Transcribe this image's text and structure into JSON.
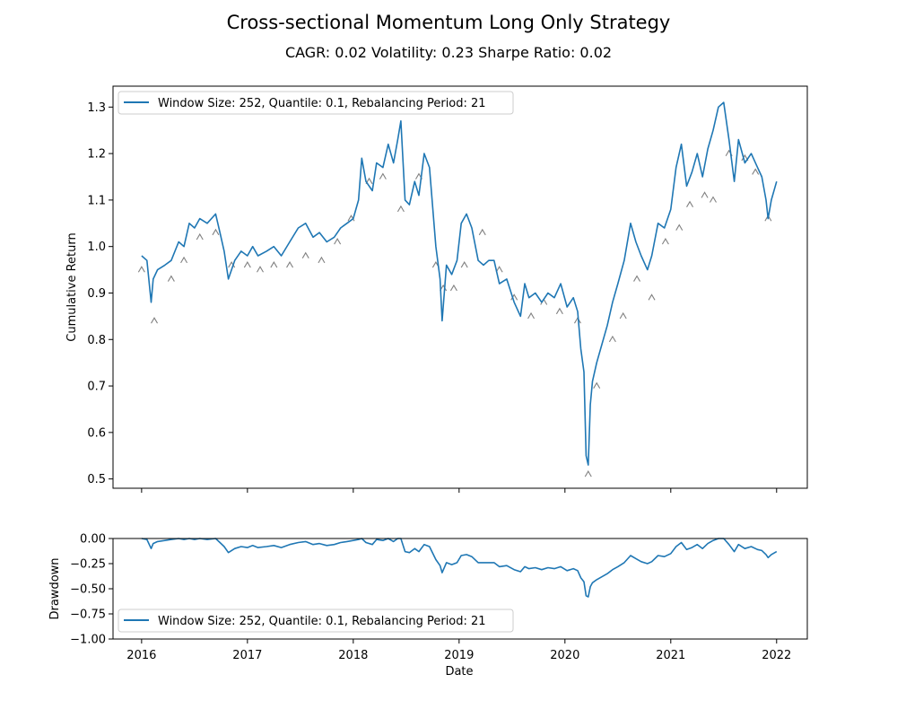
{
  "chart_data": {
    "type": "line",
    "title": "Cross-sectional Momentum Long Only Strategy",
    "subtitle": "CAGR: 0.02 Volatility: 0.23 Sharpe Ratio: 0.02",
    "line_color": "#1f77b4",
    "marker_color": "#808080",
    "panels": [
      {
        "name": "cumulative-return",
        "ylabel": "Cumulative Return",
        "ylim": [
          0.48,
          1.345
        ],
        "yticks": [
          0.5,
          0.6,
          0.7,
          0.8,
          0.9,
          1.0,
          1.1,
          1.2,
          1.3
        ],
        "ytick_labels": [
          "0.5",
          "0.6",
          "0.7",
          "0.8",
          "0.9",
          "1.0",
          "1.1",
          "1.2",
          "1.3"
        ],
        "legend": "Window Size: 252, Quantile: 0.1, Rebalancing Period: 21",
        "legend_loc": "upper left",
        "x": [
          2016.0,
          2016.05,
          2016.09,
          2016.11,
          2016.15,
          2016.22,
          2016.28,
          2016.35,
          2016.4,
          2016.45,
          2016.5,
          2016.55,
          2016.62,
          2016.7,
          2016.74,
          2016.78,
          2016.82,
          2016.88,
          2016.94,
          2017.0,
          2017.05,
          2017.1,
          2017.18,
          2017.25,
          2017.32,
          2017.4,
          2017.48,
          2017.55,
          2017.62,
          2017.68,
          2017.75,
          2017.82,
          2017.88,
          2017.94,
          2018.0,
          2018.05,
          2018.08,
          2018.12,
          2018.18,
          2018.22,
          2018.28,
          2018.33,
          2018.38,
          2018.42,
          2018.45,
          2018.49,
          2018.53,
          2018.58,
          2018.62,
          2018.67,
          2018.72,
          2018.78,
          2018.82,
          2018.84,
          2018.88,
          2018.93,
          2018.98,
          2019.02,
          2019.07,
          2019.12,
          2019.18,
          2019.23,
          2019.28,
          2019.33,
          2019.38,
          2019.45,
          2019.52,
          2019.58,
          2019.62,
          2019.66,
          2019.72,
          2019.78,
          2019.84,
          2019.9,
          2019.96,
          2020.02,
          2020.08,
          2020.12,
          2020.15,
          2020.18,
          2020.2,
          2020.22,
          2020.24,
          2020.26,
          2020.3,
          2020.35,
          2020.4,
          2020.45,
          2020.5,
          2020.56,
          2020.62,
          2020.67,
          2020.72,
          2020.78,
          2020.82,
          2020.88,
          2020.94,
          2021.0,
          2021.05,
          2021.1,
          2021.15,
          2021.2,
          2021.25,
          2021.3,
          2021.35,
          2021.4,
          2021.45,
          2021.5,
          2021.55,
          2021.6,
          2021.64,
          2021.7,
          2021.76,
          2021.82,
          2021.86,
          2021.9,
          2021.92,
          2021.95,
          2022.0
        ],
        "y": [
          0.98,
          0.97,
          0.88,
          0.93,
          0.95,
          0.96,
          0.97,
          1.01,
          1.0,
          1.05,
          1.04,
          1.06,
          1.05,
          1.07,
          1.03,
          0.99,
          0.93,
          0.97,
          0.99,
          0.98,
          1.0,
          0.98,
          0.99,
          1.0,
          0.98,
          1.01,
          1.04,
          1.05,
          1.02,
          1.03,
          1.01,
          1.02,
          1.04,
          1.05,
          1.06,
          1.1,
          1.19,
          1.14,
          1.12,
          1.18,
          1.17,
          1.22,
          1.18,
          1.23,
          1.27,
          1.1,
          1.09,
          1.14,
          1.11,
          1.2,
          1.17,
          1.0,
          0.93,
          0.84,
          0.96,
          0.94,
          0.97,
          1.05,
          1.07,
          1.04,
          0.97,
          0.96,
          0.97,
          0.97,
          0.92,
          0.93,
          0.88,
          0.85,
          0.92,
          0.89,
          0.9,
          0.88,
          0.9,
          0.89,
          0.92,
          0.87,
          0.89,
          0.86,
          0.78,
          0.73,
          0.55,
          0.53,
          0.66,
          0.71,
          0.75,
          0.79,
          0.83,
          0.88,
          0.92,
          0.97,
          1.05,
          1.01,
          0.98,
          0.95,
          0.98,
          1.05,
          1.04,
          1.08,
          1.17,
          1.22,
          1.13,
          1.16,
          1.2,
          1.15,
          1.21,
          1.25,
          1.3,
          1.31,
          1.23,
          1.14,
          1.23,
          1.18,
          1.2,
          1.17,
          1.15,
          1.1,
          1.06,
          1.1,
          1.14
        ]
      },
      {
        "name": "drawdown",
        "ylabel": "Drawdown",
        "xlabel": "Date",
        "ylim": [
          -1.0,
          0.0
        ],
        "yticks": [
          -1.0,
          -0.75,
          -0.5,
          -0.25,
          0.0
        ],
        "ytick_labels": [
          "−1.00",
          "−0.75",
          "−0.50",
          "−0.25",
          "0.00"
        ],
        "legend": "Window Size: 252, Quantile: 0.1, Rebalancing Period: 21",
        "legend_loc": "lower left",
        "x": [
          2016.0,
          2016.05,
          2016.09,
          2016.11,
          2016.15,
          2016.22,
          2016.28,
          2016.35,
          2016.4,
          2016.45,
          2016.5,
          2016.55,
          2016.62,
          2016.7,
          2016.74,
          2016.78,
          2016.82,
          2016.88,
          2016.94,
          2017.0,
          2017.05,
          2017.1,
          2017.18,
          2017.25,
          2017.32,
          2017.4,
          2017.48,
          2017.55,
          2017.62,
          2017.68,
          2017.75,
          2017.82,
          2017.88,
          2017.94,
          2018.0,
          2018.05,
          2018.08,
          2018.12,
          2018.18,
          2018.22,
          2018.28,
          2018.33,
          2018.38,
          2018.42,
          2018.45,
          2018.49,
          2018.53,
          2018.58,
          2018.62,
          2018.67,
          2018.72,
          2018.78,
          2018.82,
          2018.84,
          2018.88,
          2018.93,
          2018.98,
          2019.02,
          2019.07,
          2019.12,
          2019.18,
          2019.23,
          2019.28,
          2019.33,
          2019.38,
          2019.45,
          2019.52,
          2019.58,
          2019.62,
          2019.66,
          2019.72,
          2019.78,
          2019.84,
          2019.9,
          2019.96,
          2020.02,
          2020.08,
          2020.12,
          2020.15,
          2020.18,
          2020.2,
          2020.22,
          2020.24,
          2020.26,
          2020.3,
          2020.35,
          2020.4,
          2020.45,
          2020.5,
          2020.56,
          2020.62,
          2020.67,
          2020.72,
          2020.78,
          2020.82,
          2020.88,
          2020.94,
          2021.0,
          2021.05,
          2021.1,
          2021.15,
          2021.2,
          2021.25,
          2021.3,
          2021.35,
          2021.4,
          2021.45,
          2021.5,
          2021.55,
          2021.6,
          2021.64,
          2021.7,
          2021.76,
          2021.82,
          2021.86,
          2021.9,
          2021.92,
          2021.95,
          2022.0
        ],
        "y": [
          0.0,
          -0.01,
          -0.1,
          -0.05,
          -0.03,
          -0.02,
          -0.01,
          0.0,
          -0.01,
          0.0,
          -0.01,
          0.0,
          -0.01,
          0.0,
          -0.04,
          -0.08,
          -0.14,
          -0.1,
          -0.08,
          -0.09,
          -0.07,
          -0.09,
          -0.08,
          -0.07,
          -0.09,
          -0.06,
          -0.04,
          -0.03,
          -0.06,
          -0.05,
          -0.07,
          -0.06,
          -0.04,
          -0.03,
          -0.02,
          -0.01,
          0.0,
          -0.04,
          -0.06,
          -0.01,
          -0.02,
          0.0,
          -0.03,
          0.0,
          0.0,
          -0.13,
          -0.14,
          -0.1,
          -0.13,
          -0.06,
          -0.08,
          -0.21,
          -0.27,
          -0.34,
          -0.24,
          -0.26,
          -0.24,
          -0.17,
          -0.16,
          -0.18,
          -0.24,
          -0.24,
          -0.24,
          -0.24,
          -0.28,
          -0.27,
          -0.31,
          -0.33,
          -0.28,
          -0.3,
          -0.29,
          -0.31,
          -0.29,
          -0.3,
          -0.28,
          -0.32,
          -0.3,
          -0.32,
          -0.39,
          -0.43,
          -0.57,
          -0.58,
          -0.48,
          -0.44,
          -0.41,
          -0.38,
          -0.35,
          -0.31,
          -0.28,
          -0.24,
          -0.17,
          -0.2,
          -0.23,
          -0.25,
          -0.23,
          -0.17,
          -0.18,
          -0.15,
          -0.08,
          -0.04,
          -0.11,
          -0.09,
          -0.06,
          -0.1,
          -0.05,
          -0.02,
          0.0,
          0.0,
          -0.06,
          -0.13,
          -0.06,
          -0.1,
          -0.08,
          -0.11,
          -0.12,
          -0.16,
          -0.19,
          -0.16,
          -0.13
        ]
      }
    ],
    "xticks": [
      2016,
      2017,
      2018,
      2019,
      2020,
      2021,
      2022
    ],
    "xtick_labels": [
      "2016",
      "2017",
      "2018",
      "2019",
      "2020",
      "2021",
      "2022"
    ],
    "xlim": [
      2015.73,
      2022.29
    ],
    "markers": {
      "symbol": "^",
      "x": [
        2016.0,
        2016.12,
        2016.28,
        2016.4,
        2016.55,
        2016.7,
        2016.85,
        2017.0,
        2017.12,
        2017.25,
        2017.4,
        2017.55,
        2017.7,
        2017.85,
        2017.98,
        2018.15,
        2018.28,
        2018.45,
        2018.62,
        2018.78,
        2018.85,
        2018.95,
        2019.05,
        2019.22,
        2019.38,
        2019.52,
        2019.68,
        2019.8,
        2019.95,
        2020.12,
        2020.22,
        2020.3,
        2020.45,
        2020.55,
        2020.68,
        2020.82,
        2020.95,
        2021.08,
        2021.18,
        2021.32,
        2021.4,
        2021.55,
        2021.7,
        2021.8,
        2021.92
      ],
      "y": [
        0.97,
        0.86,
        0.95,
        0.99,
        1.04,
        1.05,
        0.98,
        0.98,
        0.97,
        0.98,
        0.98,
        1.0,
        0.99,
        1.03,
        1.08,
        1.16,
        1.17,
        1.1,
        1.17,
        0.98,
        0.93,
        0.93,
        0.98,
        1.05,
        0.97,
        0.91,
        0.87,
        0.9,
        0.88,
        0.86,
        0.53,
        0.72,
        0.82,
        0.87,
        0.95,
        0.91,
        1.03,
        1.06,
        1.11,
        1.13,
        1.12,
        1.22,
        1.21,
        1.18,
        1.08
      ]
    }
  }
}
